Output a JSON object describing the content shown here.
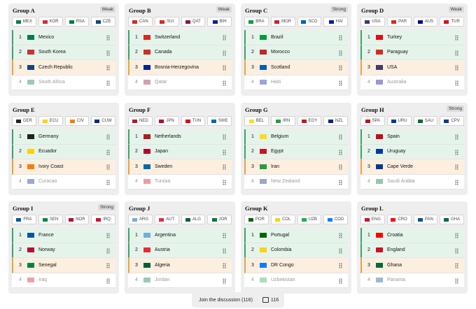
{
  "positions": [
    1,
    2,
    3,
    4
  ],
  "groups": [
    {
      "name": "Group A",
      "badge": "Weak",
      "chips": [
        {
          "code": "MEX",
          "flag": "#0a7a48"
        },
        {
          "code": "KOR",
          "flag": "#cd2e3a"
        },
        {
          "code": "RSA",
          "flag": "#007a4d"
        },
        {
          "code": "CZE",
          "flag": "#11457e"
        }
      ],
      "teams": [
        {
          "name": "Mexico",
          "flag": "#0a7a48"
        },
        {
          "name": "South Korea",
          "flag": "#cd2e3a"
        },
        {
          "name": "Czech Republic",
          "flag": "#11457e"
        },
        {
          "name": "South Africa",
          "flag": "#007a4d"
        }
      ]
    },
    {
      "name": "Group B",
      "badge": "Weak",
      "chips": [
        {
          "code": "CAN",
          "flag": "#d52b1e"
        },
        {
          "code": "SUI",
          "flag": "#d52b1e"
        },
        {
          "code": "QAT",
          "flag": "#8a1538"
        },
        {
          "code": "BIH",
          "flag": "#002395"
        }
      ],
      "teams": [
        {
          "name": "Switzerland",
          "flag": "#d52b1e"
        },
        {
          "name": "Canada",
          "flag": "#d52b1e"
        },
        {
          "name": "Bosnia-Herzegovina",
          "flag": "#002395"
        },
        {
          "name": "Qatar",
          "flag": "#8a1538"
        }
      ]
    },
    {
      "name": "Group C",
      "badge": "Strong",
      "chips": [
        {
          "code": "BRA",
          "flag": "#009c3b"
        },
        {
          "code": "MOR",
          "flag": "#c1272d"
        },
        {
          "code": "SCO",
          "flag": "#005eb8"
        },
        {
          "code": "HAI",
          "flag": "#00209f"
        }
      ],
      "teams": [
        {
          "name": "Brazil",
          "flag": "#009c3b"
        },
        {
          "name": "Morocco",
          "flag": "#c1272d"
        },
        {
          "name": "Scotland",
          "flag": "#005eb8"
        },
        {
          "name": "Haiti",
          "flag": "#00209f"
        }
      ]
    },
    {
      "name": "Group D",
      "badge": "Weak",
      "chips": [
        {
          "code": "USA",
          "flag": "#3c3b6e"
        },
        {
          "code": "PAR",
          "flag": "#d52b1e"
        },
        {
          "code": "AUS",
          "flag": "#00008b"
        },
        {
          "code": "TUR",
          "flag": "#e30a17"
        }
      ],
      "teams": [
        {
          "name": "Turkey",
          "flag": "#e30a17"
        },
        {
          "name": "Paraguay",
          "flag": "#d52b1e"
        },
        {
          "name": "USA",
          "flag": "#3c3b6e"
        },
        {
          "name": "Australia",
          "flag": "#00008b"
        }
      ]
    },
    {
      "name": "Group E",
      "chips": [
        {
          "code": "GER",
          "flag": "#222222"
        },
        {
          "code": "ECU",
          "flag": "#ffd100"
        },
        {
          "code": "CIV",
          "flag": "#f77f00"
        },
        {
          "code": "CUW",
          "flag": "#002b7f"
        }
      ],
      "teams": [
        {
          "name": "Germany",
          "flag": "#222222"
        },
        {
          "name": "Ecuador",
          "flag": "#ffd100"
        },
        {
          "name": "Ivory Coast",
          "flag": "#f77f00"
        },
        {
          "name": "Curacao",
          "flag": "#002b7f"
        }
      ]
    },
    {
      "name": "Group F",
      "chips": [
        {
          "code": "NED",
          "flag": "#ae1c28"
        },
        {
          "code": "JPN",
          "flag": "#bc002d"
        },
        {
          "code": "TUN",
          "flag": "#e70013"
        },
        {
          "code": "SWE",
          "flag": "#006aa7"
        }
      ],
      "teams": [
        {
          "name": "Netherlands",
          "flag": "#ae1c28"
        },
        {
          "name": "Japan",
          "flag": "#bc002d"
        },
        {
          "name": "Sweden",
          "flag": "#006aa7"
        },
        {
          "name": "Tunisia",
          "flag": "#e70013"
        }
      ]
    },
    {
      "name": "Group G",
      "chips": [
        {
          "code": "BEL",
          "flag": "#fdda24"
        },
        {
          "code": "IRN",
          "flag": "#239f40"
        },
        {
          "code": "EGY",
          "flag": "#ce1126"
        },
        {
          "code": "NZL",
          "flag": "#00247d"
        }
      ],
      "teams": [
        {
          "name": "Belgium",
          "flag": "#fdda24"
        },
        {
          "name": "Egypt",
          "flag": "#ce1126"
        },
        {
          "name": "Iran",
          "flag": "#239f40"
        },
        {
          "name": "New Zealand",
          "flag": "#00247d"
        }
      ]
    },
    {
      "name": "Group H",
      "badge": "Strong",
      "chips": [
        {
          "code": "SPA",
          "flag": "#c60b1e"
        },
        {
          "code": "URU",
          "flag": "#0038a8"
        },
        {
          "code": "SAU",
          "flag": "#006c35"
        },
        {
          "code": "CPV",
          "flag": "#003893"
        }
      ],
      "teams": [
        {
          "name": "Spain",
          "flag": "#c60b1e"
        },
        {
          "name": "Uruguay",
          "flag": "#0038a8"
        },
        {
          "name": "Cape Verde",
          "flag": "#003893"
        },
        {
          "name": "Saudi Arabia",
          "flag": "#006c35"
        }
      ]
    },
    {
      "name": "Group I",
      "badge": "Strong",
      "chips": [
        {
          "code": "FRA",
          "flag": "#0055a4"
        },
        {
          "code": "SEN",
          "flag": "#00853f"
        },
        {
          "code": "NOR",
          "flag": "#ba0c2f"
        },
        {
          "code": "IRQ",
          "flag": "#ce1126"
        }
      ],
      "teams": [
        {
          "name": "France",
          "flag": "#0055a4"
        },
        {
          "name": "Norway",
          "flag": "#ba0c2f"
        },
        {
          "name": "Senegal",
          "flag": "#00853f"
        },
        {
          "name": "Iraq",
          "flag": "#ce1126"
        }
      ]
    },
    {
      "name": "Group J",
      "chips": [
        {
          "code": "ARG",
          "flag": "#74acdf"
        },
        {
          "code": "AUT",
          "flag": "#ed2939"
        },
        {
          "code": "ALG",
          "flag": "#006233"
        },
        {
          "code": "JOR",
          "flag": "#007a3d"
        }
      ],
      "teams": [
        {
          "name": "Argentina",
          "flag": "#74acdf"
        },
        {
          "name": "Austria",
          "flag": "#ed2939"
        },
        {
          "name": "Algeria",
          "flag": "#006233"
        },
        {
          "name": "Jordan",
          "flag": "#007a3d"
        }
      ]
    },
    {
      "name": "Group K",
      "chips": [
        {
          "code": "POR",
          "flag": "#006600"
        },
        {
          "code": "COL",
          "flag": "#fcd116"
        },
        {
          "code": "UZB",
          "flag": "#1eb53a"
        },
        {
          "code": "COD",
          "flag": "#007fff"
        }
      ],
      "teams": [
        {
          "name": "Portugal",
          "flag": "#006600"
        },
        {
          "name": "Colombia",
          "flag": "#fcd116"
        },
        {
          "name": "DR Congo",
          "flag": "#007fff"
        },
        {
          "name": "Uzbekistan",
          "flag": "#1eb53a"
        }
      ]
    },
    {
      "name": "Group L",
      "chips": [
        {
          "code": "ENG",
          "flag": "#ce1124"
        },
        {
          "code": "CRO",
          "flag": "#ff0000"
        },
        {
          "code": "PAN",
          "flag": "#005293"
        },
        {
          "code": "GHA",
          "flag": "#006b3f"
        }
      ],
      "teams": [
        {
          "name": "Croatia",
          "flag": "#ff0000"
        },
        {
          "name": "England",
          "flag": "#ce1124"
        },
        {
          "name": "Ghana",
          "flag": "#006b3f"
        },
        {
          "name": "Panama",
          "flag": "#005293"
        }
      ]
    }
  ],
  "footer": {
    "button": "Join the discussion (116)",
    "count": "116"
  }
}
